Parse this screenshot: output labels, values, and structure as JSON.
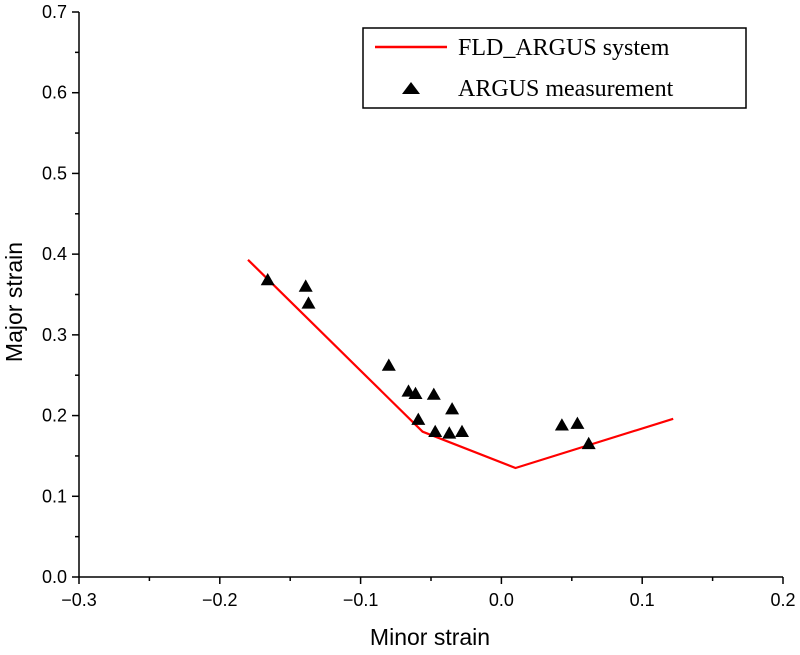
{
  "chart_data": {
    "type": "line",
    "title": "",
    "xlabel": "Minor strain",
    "ylabel": "Major strain",
    "xlim": [
      -0.3,
      0.2
    ],
    "ylim": [
      0.0,
      0.7
    ],
    "x_ticks": [
      -0.3,
      -0.2,
      -0.1,
      0.0,
      0.1,
      0.2
    ],
    "x_tick_labels": [
      "−0.3",
      "−0.2",
      "−0.1",
      "0.0",
      "0.1",
      "0.2"
    ],
    "y_ticks": [
      0.0,
      0.1,
      0.2,
      0.3,
      0.4,
      0.5,
      0.6,
      0.7
    ],
    "y_tick_labels": [
      "0.0",
      "0.1",
      "0.2",
      "0.3",
      "0.4",
      "0.5",
      "0.6",
      "0.7"
    ],
    "grid": false,
    "legend_position": "top-right",
    "series": [
      {
        "name": "FLD_ARGUS system",
        "kind": "line",
        "color": "#ff0000",
        "x": [
          -0.18,
          -0.056,
          0.01,
          0.122
        ],
        "y": [
          0.393,
          0.18,
          0.135,
          0.196
        ]
      },
      {
        "name": "ARGUS measurement",
        "kind": "scatter",
        "marker": "triangle",
        "color": "#000000",
        "x": [
          -0.166,
          -0.139,
          -0.137,
          -0.08,
          -0.066,
          -0.061,
          -0.059,
          -0.048,
          -0.047,
          -0.037,
          -0.035,
          -0.028,
          0.043,
          0.054,
          0.062
        ],
        "y": [
          0.368,
          0.36,
          0.339,
          0.262,
          0.23,
          0.227,
          0.195,
          0.226,
          0.18,
          0.178,
          0.208,
          0.18,
          0.188,
          0.19,
          0.165
        ]
      }
    ]
  }
}
